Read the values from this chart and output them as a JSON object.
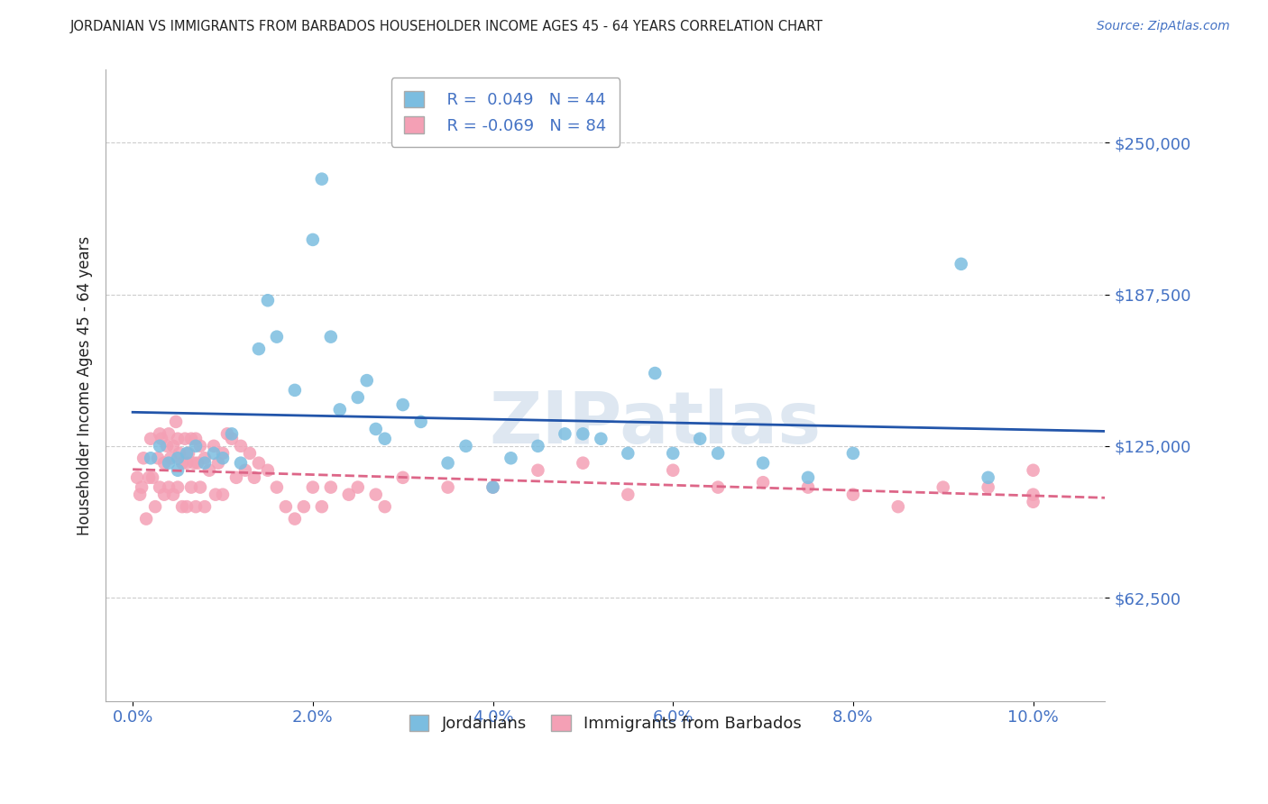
{
  "title": "JORDANIAN VS IMMIGRANTS FROM BARBADOS HOUSEHOLDER INCOME AGES 45 - 64 YEARS CORRELATION CHART",
  "source": "Source: ZipAtlas.com",
  "ylabel": "Householder Income Ages 45 - 64 years",
  "xlabel_ticks": [
    "0.0%",
    "2.0%",
    "4.0%",
    "6.0%",
    "8.0%",
    "10.0%"
  ],
  "xlabel_vals": [
    0.0,
    2.0,
    4.0,
    6.0,
    8.0,
    10.0
  ],
  "ytick_labels": [
    "$62,500",
    "$125,000",
    "$187,500",
    "$250,000"
  ],
  "ytick_vals": [
    62500,
    125000,
    187500,
    250000
  ],
  "ymin": 20000,
  "ymax": 280000,
  "xmin": -0.3,
  "xmax": 10.8,
  "legend_blue_r": "0.049",
  "legend_blue_n": "44",
  "legend_pink_r": "-0.069",
  "legend_pink_n": "84",
  "blue_color": "#7bbde0",
  "pink_color": "#f4a0b5",
  "blue_line_color": "#2255aa",
  "pink_line_color": "#dd6688",
  "title_color": "#222222",
  "watermark": "ZIPatlas",
  "blue_scatter_x": [
    0.2,
    0.3,
    0.4,
    0.5,
    0.5,
    0.6,
    0.7,
    0.8,
    0.9,
    1.0,
    1.1,
    1.2,
    1.4,
    1.5,
    1.6,
    1.8,
    2.0,
    2.1,
    2.2,
    2.3,
    2.5,
    2.6,
    2.7,
    2.8,
    3.0,
    3.2,
    3.5,
    3.7,
    4.0,
    4.2,
    4.5,
    4.8,
    5.0,
    5.2,
    5.5,
    5.8,
    6.0,
    6.3,
    6.5,
    7.0,
    7.5,
    8.0,
    9.2,
    9.5
  ],
  "blue_scatter_y": [
    120000,
    125000,
    118000,
    115000,
    120000,
    122000,
    125000,
    118000,
    122000,
    120000,
    130000,
    118000,
    165000,
    185000,
    170000,
    148000,
    210000,
    235000,
    170000,
    140000,
    145000,
    152000,
    132000,
    128000,
    142000,
    135000,
    118000,
    125000,
    108000,
    120000,
    125000,
    130000,
    130000,
    128000,
    122000,
    155000,
    122000,
    128000,
    122000,
    118000,
    112000,
    122000,
    200000,
    112000
  ],
  "pink_scatter_x": [
    0.05,
    0.08,
    0.1,
    0.12,
    0.15,
    0.18,
    0.2,
    0.22,
    0.25,
    0.28,
    0.3,
    0.3,
    0.32,
    0.35,
    0.35,
    0.38,
    0.4,
    0.4,
    0.42,
    0.45,
    0.45,
    0.48,
    0.5,
    0.5,
    0.52,
    0.55,
    0.55,
    0.58,
    0.6,
    0.6,
    0.62,
    0.65,
    0.65,
    0.68,
    0.7,
    0.7,
    0.72,
    0.75,
    0.75,
    0.8,
    0.8,
    0.85,
    0.9,
    0.92,
    0.95,
    1.0,
    1.0,
    1.05,
    1.1,
    1.15,
    1.2,
    1.25,
    1.3,
    1.35,
    1.4,
    1.5,
    1.6,
    1.7,
    1.8,
    1.9,
    2.0,
    2.1,
    2.2,
    2.4,
    2.5,
    2.7,
    2.8,
    3.0,
    3.5,
    4.0,
    4.5,
    5.0,
    5.5,
    6.0,
    6.5,
    7.0,
    7.5,
    8.0,
    8.5,
    9.0,
    9.5,
    10.0,
    10.0,
    10.0
  ],
  "pink_scatter_y": [
    112000,
    105000,
    108000,
    120000,
    95000,
    112000,
    128000,
    112000,
    100000,
    120000,
    130000,
    108000,
    128000,
    118000,
    105000,
    125000,
    130000,
    108000,
    120000,
    125000,
    105000,
    135000,
    128000,
    108000,
    122000,
    118000,
    100000,
    128000,
    118000,
    100000,
    122000,
    128000,
    108000,
    118000,
    128000,
    100000,
    118000,
    125000,
    108000,
    120000,
    100000,
    115000,
    125000,
    105000,
    118000,
    122000,
    105000,
    130000,
    128000,
    112000,
    125000,
    115000,
    122000,
    112000,
    118000,
    115000,
    108000,
    100000,
    95000,
    100000,
    108000,
    100000,
    108000,
    105000,
    108000,
    105000,
    100000,
    112000,
    108000,
    108000,
    115000,
    118000,
    105000,
    115000,
    108000,
    110000,
    108000,
    105000,
    100000,
    108000,
    108000,
    102000,
    115000,
    105000
  ]
}
